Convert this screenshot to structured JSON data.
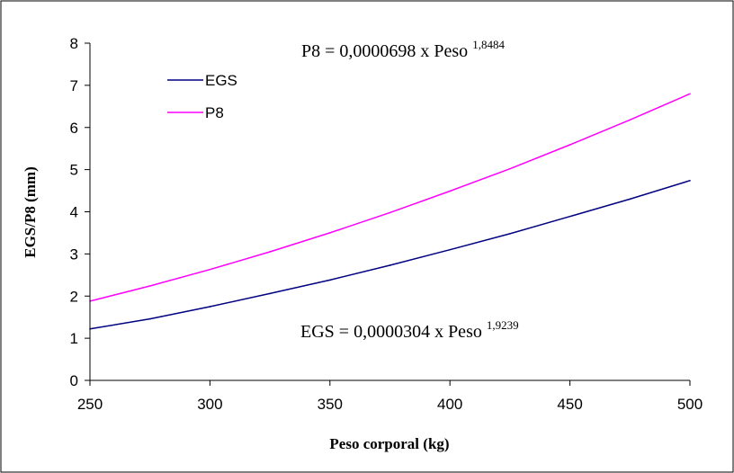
{
  "chart_data": {
    "type": "line",
    "xlabel": "Peso corporal (kg)",
    "ylabel": "EGS/P8 (mm)",
    "xlim": [
      250,
      500
    ],
    "ylim": [
      0,
      8
    ],
    "xticks": [
      "250",
      "300",
      "350",
      "400",
      "450",
      "500"
    ],
    "yticks": [
      "0",
      "1",
      "2",
      "3",
      "4",
      "5",
      "6",
      "7",
      "8"
    ],
    "grid": false,
    "legend": "top-left",
    "x": [
      250,
      275,
      300,
      325,
      350,
      375,
      400,
      425,
      450,
      475,
      500
    ],
    "series": [
      {
        "name": "EGS",
        "color": "#000080",
        "values": [
          1.22,
          1.46,
          1.75,
          2.06,
          2.38,
          2.73,
          3.1,
          3.48,
          3.89,
          4.3,
          4.74
        ]
      },
      {
        "name": "P8",
        "color": "#ff00ff",
        "values": [
          1.88,
          2.24,
          2.63,
          3.05,
          3.5,
          3.98,
          4.49,
          5.02,
          5.59,
          6.18,
          6.8
        ]
      }
    ],
    "annotations": {
      "p8_equation": "P8 = 0,0000698 x Peso ",
      "p8_exponent": "1,8484",
      "egs_equation": "EGS = 0,0000304 x Peso ",
      "egs_exponent": "1,9239"
    }
  }
}
